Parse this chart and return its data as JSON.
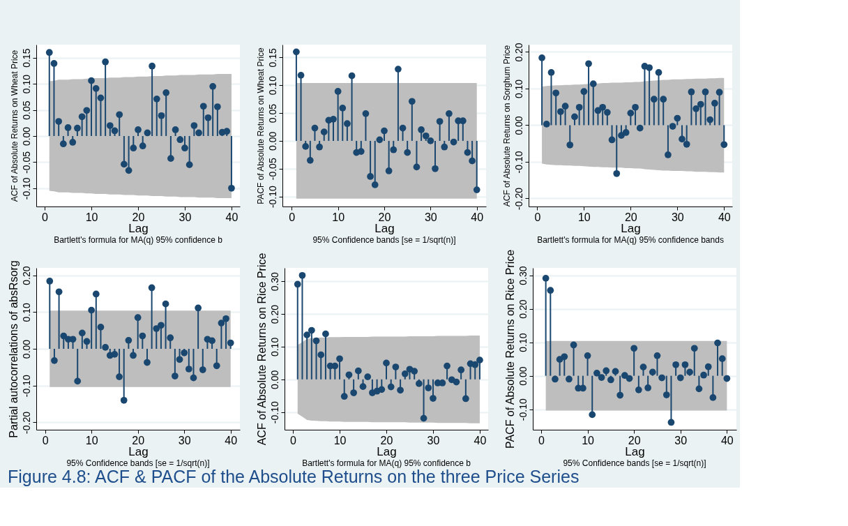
{
  "chart_data": [
    {
      "type": "lollipop",
      "ylabel": "ACF of Absolute Returns on Wheat Price",
      "xlabel": "Lag",
      "annotations": [
        "Bartlett's formula for MA(q) 95% confidence b",
        "Figure 4.8: ACF & PACF of the Absolute Returns on the three Price Series"
      ],
      "marker": "circle",
      "grid": "y",
      "x": [
        1,
        2,
        3,
        4,
        5,
        6,
        7,
        8,
        9,
        10,
        11,
        12,
        13,
        14,
        15,
        16,
        17,
        18,
        19,
        20,
        21,
        22,
        23,
        24,
        25,
        26,
        27,
        28,
        29,
        30,
        31,
        32,
        33,
        34,
        35,
        36,
        37,
        38,
        39,
        40
      ],
      "xlim": [
        -1.8,
        41.8
      ],
      "xticks": [
        0,
        10,
        20,
        30,
        40
      ],
      "ylim": [
        -0.135,
        0.175
      ],
      "yticks": [
        {
          "value": -0.1,
          "label": "-0.10"
        },
        {
          "value": -0.05,
          "label": "-0.05"
        },
        {
          "value": 0,
          "label": "0.00"
        },
        {
          "value": 0.05,
          "label": "0.05"
        },
        {
          "value": 0.1,
          "label": "0.10"
        },
        {
          "value": 0.15,
          "label": "0.15"
        }
      ],
      "series": [
        {
          "color": "#1a476f",
          "values": [
            0.16,
            0.139,
            0.028,
            -0.015,
            0.016,
            -0.012,
            0.015,
            0.037,
            0.049,
            0.106,
            0.091,
            0.073,
            0.142,
            0.02,
            0.01,
            0.041,
            -0.054,
            -0.066,
            -0.023,
            0.012,
            -0.019,
            0.006,
            0.134,
            0.071,
            0.039,
            0.083,
            -0.043,
            0.012,
            -0.007,
            -0.023,
            -0.055,
            0.02,
            0.006,
            0.057,
            0.035,
            0.095,
            0.056,
            0.007,
            0.009,
            -0.1
          ],
          "upper": [
            0.105,
            0.106,
            0.108,
            0.108,
            0.108,
            0.109,
            0.109,
            0.109,
            0.11,
            0.11,
            0.111,
            0.111,
            0.111,
            0.112,
            0.112,
            0.112,
            0.113,
            0.113,
            0.113,
            0.114,
            0.114,
            0.114,
            0.115,
            0.115,
            0.115,
            0.116,
            0.116,
            0.116,
            0.117,
            0.117,
            0.117,
            0.117,
            0.118,
            0.118,
            0.118,
            0.118,
            0.119,
            0.119,
            0.119,
            0.119
          ],
          "lower": [
            -0.105,
            -0.106,
            -0.108,
            -0.108,
            -0.108,
            -0.109,
            -0.109,
            -0.109,
            -0.11,
            -0.11,
            -0.111,
            -0.111,
            -0.111,
            -0.112,
            -0.112,
            -0.112,
            -0.113,
            -0.113,
            -0.113,
            -0.114,
            -0.114,
            -0.114,
            -0.115,
            -0.115,
            -0.115,
            -0.116,
            -0.116,
            -0.116,
            -0.117,
            -0.117,
            -0.117,
            -0.117,
            -0.118,
            -0.118,
            -0.118,
            -0.118,
            -0.119,
            -0.119,
            -0.119,
            -0.119
          ]
        }
      ]
    },
    {
      "type": "lollipop",
      "ylabel": "PACF of Absolute Returns on Wheat Price",
      "xlabel": "Lag",
      "annotations": [
        "95% Confidence bands [se = 1/sqrt(n)]"
      ],
      "marker": "circle",
      "grid": "y",
      "x": [
        1,
        2,
        3,
        4,
        5,
        6,
        7,
        8,
        9,
        10,
        11,
        12,
        13,
        14,
        15,
        16,
        17,
        18,
        19,
        20,
        21,
        22,
        23,
        24,
        25,
        26,
        27,
        28,
        29,
        30,
        31,
        32,
        33,
        34,
        35,
        36,
        37,
        38,
        39,
        40
      ],
      "xlim": [
        -2.0,
        42.0
      ],
      "xticks": [
        0,
        10,
        20,
        30,
        40
      ],
      "ylim": [
        -0.118,
        0.173
      ],
      "yticks": [
        {
          "value": -0.1,
          "label": "-0.10"
        },
        {
          "value": -0.05,
          "label": "-0.05"
        },
        {
          "value": 0,
          "label": "0.00"
        },
        {
          "value": 0.05,
          "label": "0.05"
        },
        {
          "value": 0.1,
          "label": "0.10"
        },
        {
          "value": 0.15,
          "label": "0.15"
        }
      ],
      "series": [
        {
          "color": "#1a476f",
          "values": [
            0.16,
            0.118,
            -0.01,
            -0.035,
            0.023,
            -0.011,
            0.016,
            0.037,
            0.039,
            0.089,
            0.059,
            0.031,
            0.117,
            -0.021,
            -0.019,
            0.049,
            -0.064,
            -0.079,
            0.002,
            0.018,
            -0.054,
            -0.016,
            0.129,
            0.023,
            -0.021,
            0.071,
            -0.047,
            0.02,
            0.009,
            0.0,
            -0.05,
            0.035,
            -0.011,
            0.049,
            -0.002,
            0.036,
            0.036,
            -0.021,
            -0.036,
            -0.088
          ],
          "upper": [
            0.104,
            0.104,
            0.104,
            0.104,
            0.104,
            0.104,
            0.104,
            0.104,
            0.104,
            0.104,
            0.104,
            0.104,
            0.104,
            0.104,
            0.104,
            0.104,
            0.104,
            0.104,
            0.104,
            0.104,
            0.104,
            0.104,
            0.104,
            0.104,
            0.104,
            0.104,
            0.104,
            0.104,
            0.104,
            0.104,
            0.104,
            0.104,
            0.104,
            0.104,
            0.104,
            0.104,
            0.104,
            0.104,
            0.104,
            0.104
          ],
          "lower": [
            -0.104,
            -0.104,
            -0.104,
            -0.104,
            -0.104,
            -0.104,
            -0.104,
            -0.104,
            -0.104,
            -0.104,
            -0.104,
            -0.104,
            -0.104,
            -0.104,
            -0.104,
            -0.104,
            -0.104,
            -0.104,
            -0.104,
            -0.104,
            -0.104,
            -0.104,
            -0.104,
            -0.104,
            -0.104,
            -0.104,
            -0.104,
            -0.104,
            -0.104,
            -0.104,
            -0.104,
            -0.104,
            -0.104,
            -0.104,
            -0.104,
            -0.104,
            -0.104,
            -0.104,
            -0.104,
            -0.104
          ]
        }
      ]
    },
    {
      "type": "lollipop",
      "ylabel": "ACF of Absolute Returns on Sorghum Price",
      "xlabel": "Lag",
      "annotations": [
        "Bartlett's formula for MA(q) 95% confidence bands"
      ],
      "marker": "circle",
      "grid": "y",
      "x": [
        1,
        2,
        3,
        4,
        5,
        6,
        7,
        8,
        9,
        10,
        11,
        12,
        13,
        14,
        15,
        16,
        17,
        18,
        19,
        20,
        21,
        22,
        23,
        24,
        25,
        26,
        27,
        28,
        29,
        30,
        31,
        32,
        33,
        34,
        35,
        36,
        37,
        38,
        39,
        40
      ],
      "xlim": [
        -1.85,
        41.75
      ],
      "xticks": [
        0,
        10,
        20,
        30,
        40
      ],
      "ylim": [
        -0.222,
        0.22
      ],
      "yticks": [
        {
          "value": -0.2,
          "label": "-0.20"
        },
        {
          "value": -0.1,
          "label": "-0.10"
        },
        {
          "value": 0,
          "label": "0.00"
        },
        {
          "value": 0.1,
          "label": "0.10"
        },
        {
          "value": 0.2,
          "label": "0.20"
        }
      ],
      "series": [
        {
          "color": "#1a476f",
          "values": [
            0.184,
            0.003,
            0.144,
            0.088,
            0.037,
            0.052,
            -0.054,
            0.023,
            0.049,
            0.092,
            0.168,
            0.113,
            0.04,
            0.049,
            0.035,
            -0.04,
            -0.132,
            -0.028,
            -0.02,
            0.033,
            0.049,
            -0.008,
            0.161,
            0.157,
            0.071,
            0.144,
            0.071,
            -0.081,
            -0.003,
            0.019,
            -0.038,
            -0.052,
            0.091,
            0.045,
            0.057,
            0.091,
            0.015,
            0.06,
            0.09,
            -0.053
          ],
          "upper": [
            0.105,
            0.107,
            0.108,
            0.109,
            0.109,
            0.11,
            0.11,
            0.111,
            0.111,
            0.112,
            0.113,
            0.114,
            0.114,
            0.115,
            0.115,
            0.116,
            0.116,
            0.116,
            0.117,
            0.117,
            0.118,
            0.118,
            0.12,
            0.121,
            0.122,
            0.123,
            0.124,
            0.124,
            0.125,
            0.125,
            0.125,
            0.126,
            0.126,
            0.127,
            0.127,
            0.127,
            0.128,
            0.128,
            0.129,
            0.129
          ],
          "lower": [
            -0.105,
            -0.107,
            -0.108,
            -0.109,
            -0.109,
            -0.11,
            -0.11,
            -0.111,
            -0.111,
            -0.112,
            -0.113,
            -0.114,
            -0.114,
            -0.115,
            -0.115,
            -0.116,
            -0.116,
            -0.116,
            -0.117,
            -0.117,
            -0.118,
            -0.118,
            -0.12,
            -0.121,
            -0.122,
            -0.123,
            -0.124,
            -0.124,
            -0.125,
            -0.125,
            -0.125,
            -0.126,
            -0.126,
            -0.127,
            -0.127,
            -0.127,
            -0.128,
            -0.128,
            -0.129,
            -0.129
          ]
        }
      ]
    },
    {
      "type": "lollipop",
      "ylabel": "Partial autocorrelations of absRsorg",
      "xlabel": "Lag",
      "annotations": [
        "95% Confidence bands [se = 1/sqrt(n)]"
      ],
      "marker": "circle",
      "grid": "y",
      "x": [
        1,
        2,
        3,
        4,
        5,
        6,
        7,
        8,
        9,
        10,
        11,
        12,
        13,
        14,
        15,
        16,
        17,
        18,
        19,
        20,
        21,
        22,
        23,
        24,
        25,
        26,
        27,
        28,
        29,
        30,
        31,
        32,
        33,
        34,
        35,
        36,
        37,
        38,
        39,
        40
      ],
      "xlim": [
        -1.9,
        42.0
      ],
      "xticks": [
        0,
        10,
        20,
        30,
        40
      ],
      "ylim": [
        -0.22,
        0.22
      ],
      "yticks": [
        {
          "value": -0.2,
          "label": "-0.20"
        },
        {
          "value": -0.1,
          "label": "-0.10"
        },
        {
          "value": 0,
          "label": "0.00"
        },
        {
          "value": 0.1,
          "label": "0.10"
        },
        {
          "value": 0.2,
          "label": "0.20"
        }
      ],
      "series": [
        {
          "color": "#1a476f",
          "values": [
            0.184,
            -0.032,
            0.155,
            0.035,
            0.026,
            0.026,
            -0.088,
            0.043,
            0.02,
            0.105,
            0.149,
            0.059,
            0.004,
            -0.018,
            -0.015,
            -0.076,
            -0.14,
            0.023,
            -0.018,
            0.085,
            0.035,
            -0.037,
            0.166,
            0.055,
            0.064,
            0.122,
            0.03,
            -0.074,
            -0.029,
            -0.011,
            -0.055,
            -0.079,
            0.111,
            -0.057,
            0.026,
            0.022,
            -0.046,
            0.07,
            0.082,
            0.016
          ],
          "upper": [
            0.104,
            0.104,
            0.104,
            0.104,
            0.104,
            0.104,
            0.104,
            0.104,
            0.104,
            0.104,
            0.104,
            0.104,
            0.104,
            0.104,
            0.104,
            0.104,
            0.104,
            0.104,
            0.104,
            0.104,
            0.104,
            0.104,
            0.104,
            0.104,
            0.104,
            0.104,
            0.104,
            0.104,
            0.104,
            0.104,
            0.104,
            0.104,
            0.104,
            0.104,
            0.104,
            0.104,
            0.104,
            0.104,
            0.104,
            0.104
          ],
          "lower": [
            -0.104,
            -0.104,
            -0.104,
            -0.104,
            -0.104,
            -0.104,
            -0.104,
            -0.104,
            -0.104,
            -0.104,
            -0.104,
            -0.104,
            -0.104,
            -0.104,
            -0.104,
            -0.104,
            -0.104,
            -0.104,
            -0.104,
            -0.104,
            -0.104,
            -0.104,
            -0.104,
            -0.104,
            -0.104,
            -0.104,
            -0.104,
            -0.104,
            -0.104,
            -0.104,
            -0.104,
            -0.104,
            -0.104,
            -0.104,
            -0.104,
            -0.104,
            -0.104,
            -0.104,
            -0.104,
            -0.104
          ]
        }
      ]
    },
    {
      "type": "lollipop",
      "ylabel": "ACF of Absolute Returns on Rice Price",
      "xlabel": "Lag",
      "annotations": [
        "Bartlett's formula for MA(q) 95% confidence b"
      ],
      "marker": "circle",
      "grid": "y",
      "x": [
        1,
        2,
        3,
        4,
        5,
        6,
        7,
        8,
        9,
        10,
        11,
        12,
        13,
        14,
        15,
        16,
        17,
        18,
        19,
        20,
        21,
        22,
        23,
        24,
        25,
        26,
        27,
        28,
        29,
        30,
        31,
        32,
        33,
        34,
        35,
        36,
        37,
        38,
        39,
        40
      ],
      "xlim": [
        -1.8,
        41.8
      ],
      "xticks": [
        0,
        10,
        20,
        30,
        40
      ],
      "ylim": [
        -0.154,
        0.341
      ],
      "yticks": [
        {
          "value": -0.1,
          "label": "-0.10"
        },
        {
          "value": 0,
          "label": "0.00"
        },
        {
          "value": 0.1,
          "label": "0.10"
        },
        {
          "value": 0.2,
          "label": "0.20"
        },
        {
          "value": 0.3,
          "label": "0.30"
        }
      ],
      "series": [
        {
          "color": "#1a476f",
          "values": [
            0.291,
            0.318,
            0.136,
            0.15,
            0.118,
            0.075,
            0.139,
            0.041,
            0.041,
            0.063,
            -0.052,
            0.014,
            -0.041,
            0.026,
            -0.022,
            0.008,
            -0.041,
            -0.036,
            -0.031,
            0.05,
            -0.023,
            0.038,
            -0.033,
            0.017,
            0.031,
            0.025,
            -0.013,
            -0.119,
            -0.026,
            -0.058,
            -0.011,
            -0.011,
            0.041,
            -0.001,
            -0.008,
            0.029,
            -0.059,
            0.048,
            0.045,
            0.059
          ],
          "upper": [
            0.105,
            0.114,
            0.124,
            0.126,
            0.127,
            0.128,
            0.128,
            0.129,
            0.129,
            0.129,
            0.13,
            0.13,
            0.13,
            0.13,
            0.13,
            0.13,
            0.131,
            0.131,
            0.131,
            0.131,
            0.131,
            0.131,
            0.131,
            0.131,
            0.132,
            0.132,
            0.132,
            0.132,
            0.132,
            0.132,
            0.133,
            0.133,
            0.133,
            0.133,
            0.133,
            0.133,
            0.133,
            0.134,
            0.134,
            0.134
          ],
          "lower": [
            -0.105,
            -0.114,
            -0.124,
            -0.126,
            -0.127,
            -0.128,
            -0.128,
            -0.129,
            -0.129,
            -0.129,
            -0.13,
            -0.13,
            -0.13,
            -0.13,
            -0.13,
            -0.13,
            -0.131,
            -0.131,
            -0.131,
            -0.131,
            -0.131,
            -0.131,
            -0.131,
            -0.131,
            -0.132,
            -0.132,
            -0.132,
            -0.132,
            -0.132,
            -0.132,
            -0.133,
            -0.133,
            -0.133,
            -0.133,
            -0.133,
            -0.133,
            -0.133,
            -0.134,
            -0.134,
            -0.134
          ]
        }
      ]
    },
    {
      "type": "lollipop",
      "ylabel": "PACF of Absolute Returns on Rice Price",
      "xlabel": "Lag",
      "annotations": [
        "95% Confidence bands [se = 1/sqrt(n)]"
      ],
      "marker": "circle",
      "grid": "y",
      "x": [
        1,
        2,
        3,
        4,
        5,
        6,
        7,
        8,
        9,
        10,
        11,
        12,
        13,
        14,
        15,
        16,
        17,
        18,
        19,
        20,
        21,
        22,
        23,
        24,
        25,
        26,
        27,
        28,
        29,
        30,
        31,
        32,
        33,
        34,
        35,
        36,
        37,
        38,
        39,
        40
      ],
      "xlim": [
        -1.8,
        42.05
      ],
      "xticks": [
        0,
        10,
        20,
        30,
        40
      ],
      "ylim": [
        -0.161,
        0.322
      ],
      "yticks": [
        {
          "value": -0.1,
          "label": "-0.10"
        },
        {
          "value": 0,
          "label": "0.00"
        },
        {
          "value": 0.1,
          "label": "0.10"
        },
        {
          "value": 0.2,
          "label": "0.20"
        },
        {
          "value": 0.3,
          "label": "0.30"
        }
      ],
      "series": [
        {
          "color": "#1a476f",
          "values": [
            0.291,
            0.255,
            -0.01,
            0.049,
            0.057,
            -0.01,
            0.092,
            -0.037,
            -0.037,
            0.06,
            -0.116,
            0.008,
            -0.005,
            0.015,
            -0.012,
            0.013,
            -0.058,
            0.001,
            -0.008,
            0.082,
            -0.042,
            0.026,
            -0.036,
            0.011,
            0.06,
            -0.006,
            -0.057,
            -0.139,
            0.033,
            -0.006,
            0.033,
            0.011,
            0.082,
            -0.039,
            0.002,
            0.027,
            -0.065,
            0.098,
            0.051,
            -0.008
          ],
          "upper": [
            0.104,
            0.104,
            0.104,
            0.104,
            0.104,
            0.104,
            0.104,
            0.104,
            0.104,
            0.104,
            0.104,
            0.104,
            0.104,
            0.104,
            0.104,
            0.104,
            0.104,
            0.104,
            0.104,
            0.104,
            0.104,
            0.104,
            0.104,
            0.104,
            0.104,
            0.104,
            0.104,
            0.104,
            0.104,
            0.104,
            0.104,
            0.104,
            0.104,
            0.104,
            0.104,
            0.104,
            0.104,
            0.104,
            0.104,
            0.104
          ],
          "lower": [
            -0.104,
            -0.104,
            -0.104,
            -0.104,
            -0.104,
            -0.104,
            -0.104,
            -0.104,
            -0.104,
            -0.104,
            -0.104,
            -0.104,
            -0.104,
            -0.104,
            -0.104,
            -0.104,
            -0.104,
            -0.104,
            -0.104,
            -0.104,
            -0.104,
            -0.104,
            -0.104,
            -0.104,
            -0.104,
            -0.104,
            -0.104,
            -0.104,
            -0.104,
            -0.104,
            -0.104,
            -0.104,
            -0.104,
            -0.104,
            -0.104,
            -0.104,
            -0.104,
            -0.104,
            -0.104,
            -0.104
          ]
        }
      ]
    }
  ]
}
